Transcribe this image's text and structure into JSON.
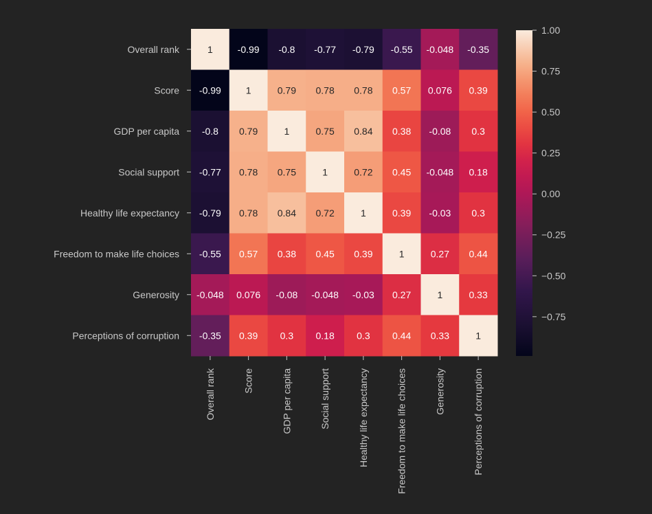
{
  "chart_data": {
    "type": "heatmap",
    "title": "",
    "xlabel": "",
    "ylabel": "",
    "colormap": "rocket",
    "row_labels": [
      "Overall rank",
      "Score",
      "GDP per capita",
      "Social support",
      "Healthy life expectancy",
      "Freedom to make life choices",
      "Generosity",
      "Perceptions of corruption"
    ],
    "col_labels": [
      "Overall rank",
      "Score",
      "GDP per capita",
      "Social support",
      "Healthy life expectancy",
      "Freedom to make life choices",
      "Generosity",
      "Perceptions of corruption"
    ],
    "values": [
      [
        1,
        -0.99,
        -0.8,
        -0.77,
        -0.79,
        -0.55,
        -0.048,
        -0.35
      ],
      [
        -0.99,
        1,
        0.79,
        0.78,
        0.78,
        0.57,
        0.076,
        0.39
      ],
      [
        -0.8,
        0.79,
        1,
        0.75,
        0.84,
        0.38,
        -0.08,
        0.3
      ],
      [
        -0.77,
        0.78,
        0.75,
        1,
        0.72,
        0.45,
        -0.048,
        0.18
      ],
      [
        -0.79,
        0.78,
        0.84,
        0.72,
        1,
        0.39,
        -0.03,
        0.3
      ],
      [
        -0.55,
        0.57,
        0.38,
        0.45,
        0.39,
        1,
        0.27,
        0.44
      ],
      [
        -0.048,
        0.076,
        -0.08,
        -0.048,
        -0.03,
        0.27,
        1,
        0.33
      ],
      [
        -0.35,
        0.39,
        0.3,
        0.18,
        0.3,
        0.44,
        0.33,
        1
      ]
    ],
    "annotations": [
      [
        "1",
        "-0.99",
        "-0.8",
        "-0.77",
        "-0.79",
        "-0.55",
        "-0.048",
        "-0.35"
      ],
      [
        "-0.99",
        "1",
        "0.79",
        "0.78",
        "0.78",
        "0.57",
        "0.076",
        "0.39"
      ],
      [
        "-0.8",
        "0.79",
        "1",
        "0.75",
        "0.84",
        "0.38",
        "-0.08",
        "0.3"
      ],
      [
        "-0.77",
        "0.78",
        "0.75",
        "1",
        "0.72",
        "0.45",
        "-0.048",
        "0.18"
      ],
      [
        "-0.79",
        "0.78",
        "0.84",
        "0.72",
        "1",
        "0.39",
        "-0.03",
        "0.3"
      ],
      [
        "-0.55",
        "0.57",
        "0.38",
        "0.45",
        "0.39",
        "1",
        "0.27",
        "0.44"
      ],
      [
        "-0.048",
        "0.076",
        "-0.08",
        "-0.048",
        "-0.03",
        "0.27",
        "1",
        "0.33"
      ],
      [
        "-0.35",
        "0.39",
        "0.3",
        "0.18",
        "0.3",
        "0.44",
        "0.33",
        "1"
      ]
    ],
    "colorbar": {
      "vmin": -0.99,
      "vmax": 1.0,
      "ticks": [
        1.0,
        0.75,
        0.5,
        0.25,
        0.0,
        -0.25,
        -0.5,
        -0.75
      ],
      "tick_labels": [
        "1.00",
        "0.75",
        "0.50",
        "0.25",
        "0.00",
        "−0.25",
        "−0.50",
        "−0.75"
      ],
      "placement": "right"
    },
    "legend": "none",
    "grid": false
  },
  "colors": {
    "background": "#232323",
    "tick_text": "#c8c8c8",
    "annot_dark": "#262626",
    "annot_light": "#ffffff"
  }
}
